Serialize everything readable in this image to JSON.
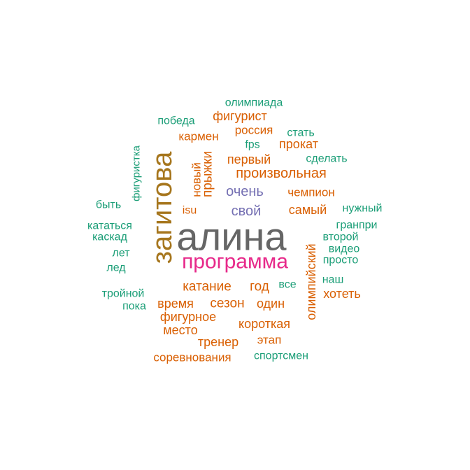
{
  "colors": {
    "green": "#1b9e77",
    "orange": "#d95f02",
    "purple": "#7570b3",
    "magenta": "#e7298a",
    "gold": "#a6761d",
    "gray": "#666666"
  },
  "words": [
    {
      "text": "алина",
      "color": "gray",
      "vertical": false
    },
    {
      "text": "загитова",
      "color": "gold",
      "vertical": true
    },
    {
      "text": "программа",
      "color": "magenta",
      "vertical": false
    },
    {
      "text": "произвольная",
      "color": "orange",
      "vertical": false
    },
    {
      "text": "очень",
      "color": "purple",
      "vertical": false
    },
    {
      "text": "свой",
      "color": "purple",
      "vertical": false
    },
    {
      "text": "олимпийский",
      "color": "orange",
      "vertical": true
    },
    {
      "text": "катание",
      "color": "orange",
      "vertical": false
    },
    {
      "text": "сезон",
      "color": "orange",
      "vertical": false
    },
    {
      "text": "год",
      "color": "orange",
      "vertical": false
    },
    {
      "text": "прыжки",
      "color": "orange",
      "vertical": true
    },
    {
      "text": "новый",
      "color": "orange",
      "vertical": true
    },
    {
      "text": "первый",
      "color": "orange",
      "vertical": false
    },
    {
      "text": "фигурист",
      "color": "orange",
      "vertical": false
    },
    {
      "text": "россия",
      "color": "orange",
      "vertical": false
    },
    {
      "text": "прокат",
      "color": "orange",
      "vertical": false
    },
    {
      "text": "кармен",
      "color": "orange",
      "vertical": false
    },
    {
      "text": "чемпион",
      "color": "orange",
      "vertical": false
    },
    {
      "text": "самый",
      "color": "orange",
      "vertical": false
    },
    {
      "text": "хотеть",
      "color": "orange",
      "vertical": false
    },
    {
      "text": "время",
      "color": "orange",
      "vertical": false
    },
    {
      "text": "один",
      "color": "orange",
      "vertical": false
    },
    {
      "text": "фигурное",
      "color": "orange",
      "vertical": false
    },
    {
      "text": "короткая",
      "color": "orange",
      "vertical": false
    },
    {
      "text": "место",
      "color": "orange",
      "vertical": false
    },
    {
      "text": "тренер",
      "color": "orange",
      "vertical": false
    },
    {
      "text": "этап",
      "color": "orange",
      "vertical": false
    },
    {
      "text": "соревнования",
      "color": "orange",
      "vertical": false
    },
    {
      "text": "isu",
      "color": "orange",
      "vertical": false
    },
    {
      "text": "олимпиада",
      "color": "green",
      "vertical": false
    },
    {
      "text": "победа",
      "color": "green",
      "vertical": false
    },
    {
      "text": "стать",
      "color": "green",
      "vertical": false
    },
    {
      "text": "fps",
      "color": "green",
      "vertical": false
    },
    {
      "text": "сделать",
      "color": "green",
      "vertical": false
    },
    {
      "text": "фигуристка",
      "color": "green",
      "vertical": true
    },
    {
      "text": "быть",
      "color": "green",
      "vertical": false
    },
    {
      "text": "нужный",
      "color": "green",
      "vertical": false
    },
    {
      "text": "кататься",
      "color": "green",
      "vertical": false
    },
    {
      "text": "гранпри",
      "color": "green",
      "vertical": false
    },
    {
      "text": "каскад",
      "color": "green",
      "vertical": false
    },
    {
      "text": "второй",
      "color": "green",
      "vertical": false
    },
    {
      "text": "видео",
      "color": "green",
      "vertical": false
    },
    {
      "text": "лет",
      "color": "green",
      "vertical": false
    },
    {
      "text": "просто",
      "color": "green",
      "vertical": false
    },
    {
      "text": "лед",
      "color": "green",
      "vertical": false
    },
    {
      "text": "наш",
      "color": "green",
      "vertical": false
    },
    {
      "text": "все",
      "color": "green",
      "vertical": false
    },
    {
      "text": "тройной",
      "color": "green",
      "vertical": false
    },
    {
      "text": "пока",
      "color": "green",
      "vertical": false
    },
    {
      "text": "спортсмен",
      "color": "green",
      "vertical": false
    }
  ]
}
